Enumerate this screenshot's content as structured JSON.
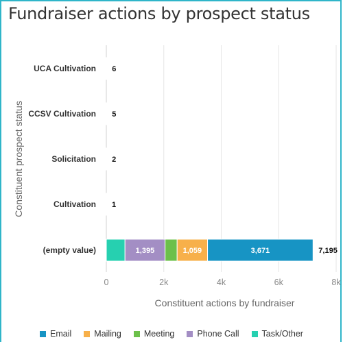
{
  "chart_data": {
    "type": "bar",
    "orientation": "horizontal",
    "stacked": true,
    "title": "Fundraiser actions by prospect status",
    "xlabel": "Constituent actions by fundraiser",
    "ylabel": "Constituent prospect status",
    "categories": [
      "UCA Cultivation",
      "CCSV Cultivation",
      "Solicitation",
      "Cultivation",
      "(empty value)"
    ],
    "xlim": [
      0,
      8000
    ],
    "xticks": [
      0,
      2000,
      4000,
      6000,
      8000
    ],
    "xtick_labels": [
      "0",
      "2k",
      "4k",
      "6k",
      "8k"
    ],
    "grid": true,
    "legend_position": "bottom",
    "series": [
      {
        "name": "Task/Other",
        "color": "#26d0b0",
        "values": [
          0,
          0,
          0,
          0,
          650
        ],
        "labels": [
          "",
          "",
          "",
          "",
          ""
        ]
      },
      {
        "name": "Phone Call",
        "color": "#a38ec4",
        "values": [
          0,
          0,
          0,
          0,
          1395
        ],
        "labels": [
          "",
          "",
          "",
          "",
          "1,395"
        ]
      },
      {
        "name": "Meeting",
        "color": "#6cc04a",
        "values": [
          0,
          0,
          0,
          0,
          420
        ],
        "labels": [
          "",
          "",
          "",
          "",
          ""
        ]
      },
      {
        "name": "Mailing",
        "color": "#f7b04a",
        "values": [
          0,
          0,
          0,
          0,
          1059
        ],
        "labels": [
          "",
          "",
          "",
          "",
          "1,059"
        ]
      },
      {
        "name": "Email",
        "color": "#1794c4",
        "values": [
          6,
          5,
          2,
          1,
          3671
        ],
        "labels": [
          "",
          "",
          "",
          "",
          "3,671"
        ]
      }
    ],
    "totals": [
      "6",
      "5",
      "2",
      "1",
      "7,195"
    ],
    "legend_order": [
      "Email",
      "Mailing",
      "Meeting",
      "Phone Call",
      "Task/Other"
    ]
  }
}
